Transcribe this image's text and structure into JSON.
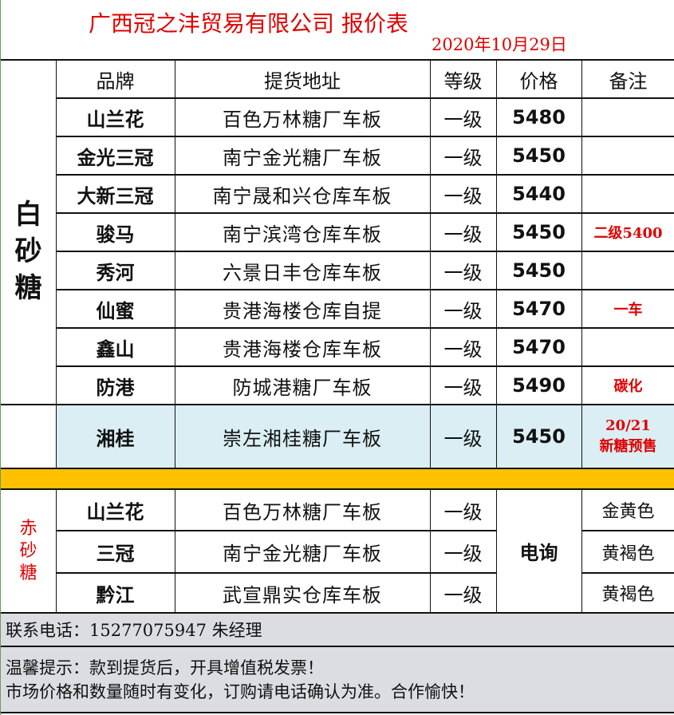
{
  "header": {
    "title": "广西冠之沣贸易有限公司  报价表",
    "date": "2020年10月29日"
  },
  "columns": [
    "品牌",
    "提货地址",
    "等级",
    "价格",
    "备注"
  ],
  "white_sugar": {
    "category": [
      "白",
      "砂",
      "糖"
    ],
    "rows": [
      {
        "brand": "山兰花",
        "address": "百色万林糖厂车板",
        "grade": "一级",
        "price": "5480",
        "note": ""
      },
      {
        "brand": "金光三冠",
        "address": "南宁金光糖厂车板",
        "grade": "一级",
        "price": "5450",
        "note": ""
      },
      {
        "brand": "大新三冠",
        "address": "南宁晟和兴仓库车板",
        "grade": "一级",
        "price": "5440",
        "note": ""
      },
      {
        "brand": "骏马",
        "address": "南宁滨湾仓库车板",
        "grade": "一级",
        "price": "5450",
        "note": "二级5400"
      },
      {
        "brand": "秀河",
        "address": "六景日丰仓库车板",
        "grade": "一级",
        "price": "5450",
        "note": ""
      },
      {
        "brand": "仙蜜",
        "address": "贵港海楼仓库自提",
        "grade": "一级",
        "price": "5470",
        "note": "一车"
      },
      {
        "brand": "鑫山",
        "address": "贵港海楼仓库车板",
        "grade": "一级",
        "price": "5470",
        "note": ""
      },
      {
        "brand": "防港",
        "address": "防城港糖厂车板",
        "grade": "一级",
        "price": "5490",
        "note": "碳化"
      }
    ],
    "presale": {
      "brand": "湘桂",
      "address": "崇左湘桂糖厂车板",
      "grade": "一级",
      "price": "5450",
      "note_line1": "20/21",
      "note_line2": "新糖预售"
    }
  },
  "red_sugar": {
    "category": [
      "赤",
      "砂",
      "糖"
    ],
    "price": "电询",
    "rows": [
      {
        "brand": "山兰花",
        "address": "百色万林糖厂车板",
        "grade": "一级",
        "note": "金黄色"
      },
      {
        "brand": "三冠",
        "address": "南宁金光糖厂车板",
        "grade": "一级",
        "note": "黄褐色"
      },
      {
        "brand": "黔江",
        "address": "武宣鼎实仓库车板",
        "grade": "一级",
        "note": "黄褐色"
      }
    ]
  },
  "footer": {
    "contact": "联系电话：15277075947 朱经理",
    "tip1": "温馨提示：款到提货后，开具增值税发票！",
    "tip2": "市场价格和数量随时有变化，订购请电话确认为准。合作愉快！"
  },
  "colors": {
    "accent_red": "#e00000",
    "separator": "#ffc000",
    "presale_bg": "#daeef3",
    "footer_bg": "#dcdde2"
  }
}
